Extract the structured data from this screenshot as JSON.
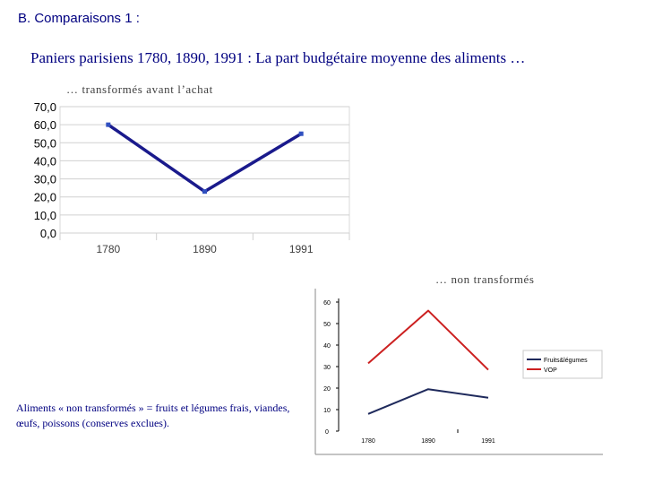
{
  "section_title": "B. Comparaisons 1 :",
  "main_title": "Paniers parisiens 1780, 1890, 1991 :  La part budgétaire moyenne des aliments …",
  "subtitle_processed": "… transformés avant l’achat",
  "subtitle_unprocessed": "… non transformés",
  "note": "Aliments « non transformés » = fruits et légumes frais, viandes, œufs, poissons (conserves exclues).",
  "chart_data": [
    {
      "type": "line",
      "title": "",
      "xlabel": "",
      "ylabel": "",
      "categories": [
        "1780",
        "1890",
        "1991"
      ],
      "y_ticks": [
        "0,0",
        "10,0",
        "20,0",
        "30,0",
        "40,0",
        "50,0",
        "60,0",
        "70,0"
      ],
      "ylim": [
        0,
        70
      ],
      "grid": true,
      "series": [
        {
          "values": [
            60,
            23,
            55
          ],
          "color": "#1a1a8c"
        }
      ]
    },
    {
      "type": "line",
      "title": "",
      "xlabel": "",
      "ylabel": "",
      "categories": [
        "1780",
        "1890",
        "1991"
      ],
      "y_ticks": [
        "0",
        "10",
        "20",
        "30",
        "40",
        "50",
        "60"
      ],
      "ylim": [
        0,
        60
      ],
      "grid": false,
      "legend_position": "right",
      "series": [
        {
          "name": "Fruits&légumes",
          "values": [
            8,
            19.5,
            15.5
          ],
          "color": "#1f2a5c"
        },
        {
          "name": "VOP",
          "values": [
            31.5,
            56,
            28.5
          ],
          "color": "#cc2020"
        }
      ]
    }
  ]
}
